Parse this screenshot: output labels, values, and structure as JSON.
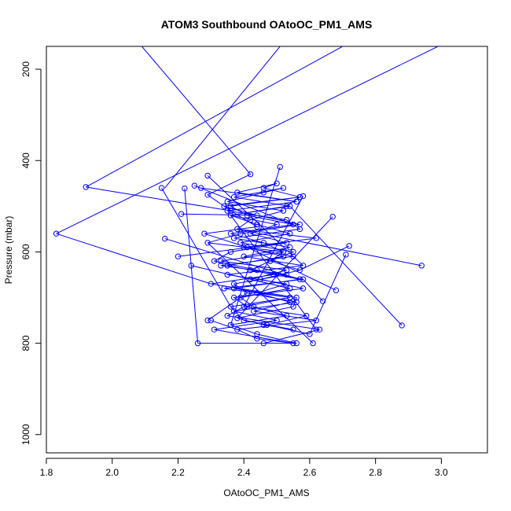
{
  "chart_data": {
    "type": "line",
    "title": "ATOM3 Southbound OAtoOC_PM1_AMS",
    "xlabel": "OAtoOC_PM1_AMS",
    "ylabel": "Pressure (mbar)",
    "xlim": [
      1.8,
      3.14
    ],
    "ylim": [
      1040,
      150
    ],
    "y_reversed": true,
    "x_ticks": [
      1.8,
      2.0,
      2.2,
      2.4,
      2.6,
      2.8,
      3.0
    ],
    "x_tick_labels": [
      "1.8",
      "2.0",
      "2.2",
      "2.4",
      "2.6",
      "2.8",
      "3.0"
    ],
    "y_ticks": [
      200,
      400,
      600,
      800,
      1000
    ],
    "y_tick_labels": [
      "200",
      "400",
      "600",
      "800",
      "1000"
    ],
    "grid": false,
    "legend": "none",
    "series_color": "#0000ff",
    "marker": "open-circle",
    "series": [
      {
        "x": [
          2.09,
          2.42,
          2.29,
          2.36,
          2.44,
          2.28,
          2.41,
          2.52,
          2.35,
          2.49,
          2.3,
          2.56,
          2.55,
          2.38,
          2.46,
          2.55,
          2.4,
          2.36,
          2.54,
          2.34,
          2.58,
          2.44,
          2.31,
          2.36,
          2.53,
          2.42,
          2.5,
          2.36,
          2.53,
          2.57,
          2.34,
          2.44,
          2.57,
          2.39,
          2.29,
          2.52,
          2.48,
          2.42,
          2.57,
          2.37,
          2.54,
          2.4,
          2.35,
          2.63,
          2.46,
          2.26,
          2.56,
          2.44,
          2.36,
          2.53,
          2.43,
          2.39,
          2.54,
          2.42,
          2.53,
          2.33,
          2.52,
          2.46,
          2.36,
          2.55,
          2.41,
          2.36,
          2.57,
          2.46,
          2.5,
          2.38,
          2.56,
          2.35,
          2.53,
          2.57,
          2.37,
          2.54,
          2.4,
          2.58,
          2.35,
          2.53,
          2.44,
          2.54,
          2.43,
          2.62,
          2.38,
          2.44,
          2.55,
          2.31,
          2.5,
          2.37,
          2.56,
          2.41,
          2.37,
          2.53,
          2.33,
          2.55,
          2.4,
          2.62,
          2.38,
          2.42,
          2.52,
          2.35,
          2.46,
          2.52,
          2.37,
          2.54,
          2.36,
          2.44,
          2.54,
          2.39,
          2.55,
          2.48,
          2.57,
          2.45,
          2.58,
          2.37,
          2.41,
          2.59,
          2.47,
          2.6
        ],
        "y": [
          150,
          430,
          475,
          510,
          545,
          560,
          590,
          610,
          630,
          650,
          670,
          700,
          720,
          745,
          760,
          770,
          750,
          720,
          700,
          680,
          660,
          640,
          620,
          600,
          580,
          560,
          540,
          520,
          500,
          480,
          500,
          520,
          540,
          560,
          580,
          600,
          620,
          640,
          660,
          680,
          700,
          720,
          740,
          770,
          800,
          800,
          800,
          780,
          760,
          740,
          720,
          700,
          680,
          660,
          640,
          620,
          600,
          580,
          560,
          540,
          520,
          500,
          480,
          460,
          450,
          470,
          490,
          510,
          530,
          550,
          570,
          590,
          610,
          630,
          650,
          670,
          690,
          710,
          730,
          750,
          770,
          790,
          800,
          770,
          750,
          730,
          710,
          690,
          670,
          650,
          630,
          610,
          590,
          570,
          550,
          530,
          510,
          490,
          470,
          460,
          480,
          500,
          520,
          540,
          560,
          580,
          600,
          620,
          640,
          660,
          680,
          700,
          720,
          740,
          760,
          780
        ]
      }
    ],
    "outliers": {
      "x": [
        1.92,
        1.83,
        2.15,
        2.2,
        2.21,
        2.16,
        2.22,
        2.24,
        2.25,
        2.27,
        2.29,
        2.3,
        2.29,
        2.94,
        2.88,
        2.72,
        2.71,
        2.68,
        2.67,
        2.64,
        2.62,
        2.61,
        2.58,
        2.51
      ],
      "y": [
        458,
        560,
        460,
        610,
        517,
        571,
        461,
        630,
        455,
        460,
        433,
        750,
        750,
        630,
        761,
        587,
        606,
        684,
        523,
        708,
        770,
        800,
        478,
        414
      ]
    },
    "far_lines": [
      [
        2.16,
        460,
        2.51,
        150
      ],
      [
        1.92,
        458,
        2.7,
        150
      ],
      [
        1.83,
        560,
        2.99,
        150
      ]
    ]
  }
}
